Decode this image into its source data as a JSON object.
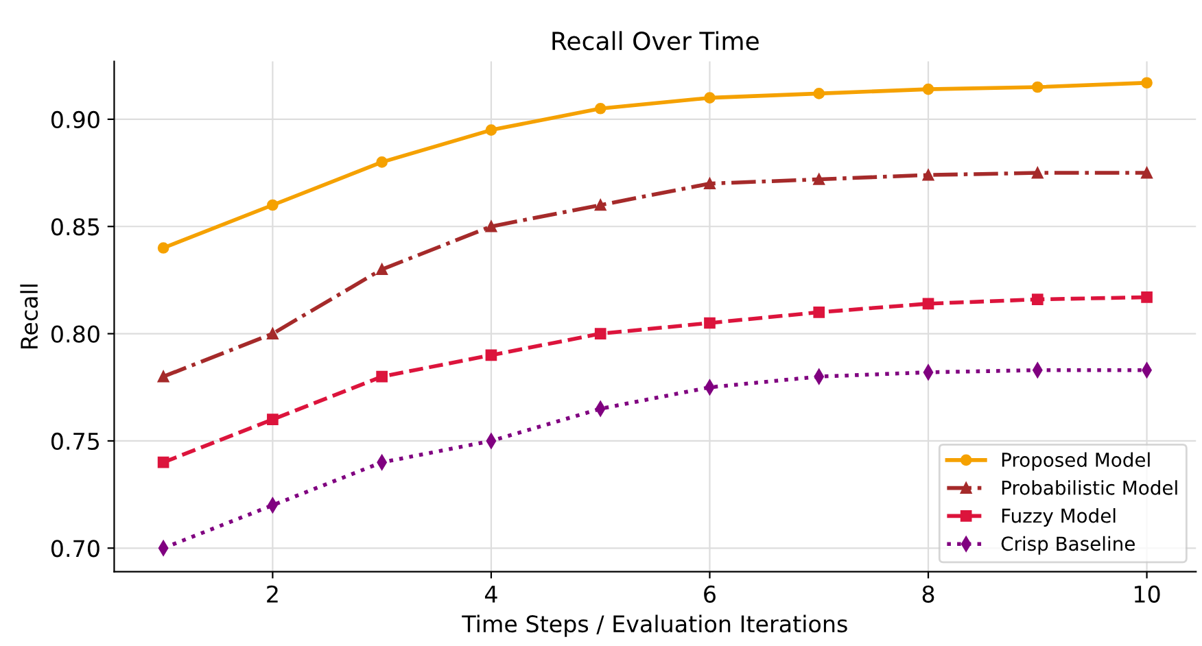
{
  "chart_data": {
    "type": "line",
    "title": "Recall Over Time",
    "xlabel": "Time Steps / Evaluation Iterations",
    "ylabel": "Recall",
    "x": [
      1,
      2,
      3,
      4,
      5,
      6,
      7,
      8,
      9,
      10
    ],
    "series": [
      {
        "name": "Proposed Model",
        "color": "#f5a100",
        "marker": "circle",
        "line_style": "solid",
        "values": [
          0.84,
          0.86,
          0.88,
          0.895,
          0.905,
          0.91,
          0.912,
          0.914,
          0.915,
          0.917
        ]
      },
      {
        "name": "Probabilistic Model",
        "color": "#a52a2a",
        "marker": "triangle",
        "line_style": "dashdot",
        "values": [
          0.78,
          0.8,
          0.83,
          0.85,
          0.86,
          0.87,
          0.872,
          0.874,
          0.875,
          0.875
        ]
      },
      {
        "name": "Fuzzy Model",
        "color": "#dc143c",
        "marker": "square",
        "line_style": "dashed",
        "values": [
          0.74,
          0.76,
          0.78,
          0.79,
          0.8,
          0.805,
          0.81,
          0.814,
          0.816,
          0.817
        ]
      },
      {
        "name": "Crisp Baseline",
        "color": "#800080",
        "marker": "diamond",
        "line_style": "dotted",
        "values": [
          0.7,
          0.72,
          0.74,
          0.75,
          0.765,
          0.775,
          0.78,
          0.782,
          0.783,
          0.783
        ]
      }
    ],
    "xlim": [
      0.55,
      10.45
    ],
    "ylim": [
      0.689,
      0.927
    ],
    "xticks": [
      2,
      4,
      6,
      8,
      10
    ],
    "yticks": [
      {
        "value": 0.7,
        "label": "0.70"
      },
      {
        "value": 0.75,
        "label": "0.75"
      },
      {
        "value": 0.8,
        "label": "0.80"
      },
      {
        "value": 0.85,
        "label": "0.85"
      },
      {
        "value": 0.9,
        "label": "0.90"
      }
    ],
    "grid": true,
    "legend": "bottom right"
  }
}
